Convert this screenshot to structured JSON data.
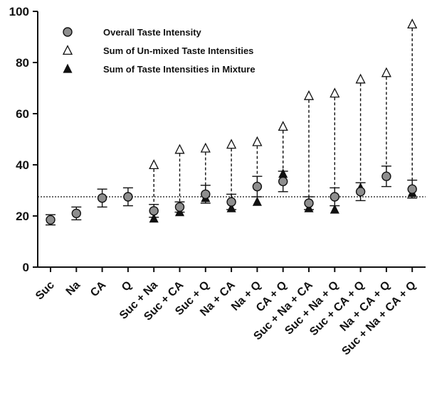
{
  "chart_data": {
    "type": "scatter",
    "title": "",
    "xlabel": "",
    "ylabel": "",
    "ylim": [
      0,
      100
    ],
    "yticks": [
      0,
      20,
      40,
      60,
      80,
      100
    ],
    "reference_line": 27.5,
    "categories": [
      "Suc",
      "Na",
      "CA",
      "Q",
      "Suc + Na",
      "Suc + CA",
      "Suc + Q",
      "Na + CA",
      "Na + Q",
      "CA + Q",
      "Suc + Na + CA",
      "Suc + Na + Q",
      "Suc + CA + Q",
      "Na + CA + Q",
      "Suc + Na + CA + Q"
    ],
    "legend": {
      "position": "top-left",
      "entries": [
        {
          "symbol": "circle",
          "label": "Overall Taste Intensity"
        },
        {
          "symbol": "open-triangle",
          "label": "Sum of Un-mixed Taste Intensities"
        },
        {
          "symbol": "filled-triangle",
          "label": "Sum of Taste Intensities in Mixture"
        }
      ]
    },
    "series": [
      {
        "name": "Overall Taste Intensity",
        "marker": "circle",
        "values": [
          18.5,
          21,
          27,
          27.5,
          22,
          23.5,
          28.5,
          25.5,
          31.5,
          33.5,
          25,
          27.5,
          29.5,
          35.5,
          30.5
        ],
        "error": [
          2,
          2.5,
          3.5,
          3.5,
          2.5,
          2,
          3.5,
          3,
          4,
          4,
          2.5,
          3.5,
          3.5,
          4,
          3.5
        ]
      },
      {
        "name": "Sum of Un-mixed Taste Intensities",
        "marker": "open-triangle",
        "values": [
          null,
          null,
          null,
          null,
          40,
          46,
          46.5,
          48,
          49,
          55,
          67,
          68,
          73.5,
          76,
          95
        ]
      },
      {
        "name": "Sum of Taste Intensities in Mixture",
        "marker": "filled-triangle",
        "values": [
          null,
          null,
          null,
          null,
          19,
          21.5,
          27,
          23,
          25.5,
          36.5,
          23,
          22.5,
          31,
          null,
          29
        ]
      }
    ],
    "colors": {
      "circle_fill": "#8e8e8e",
      "stroke": "#111111"
    }
  }
}
